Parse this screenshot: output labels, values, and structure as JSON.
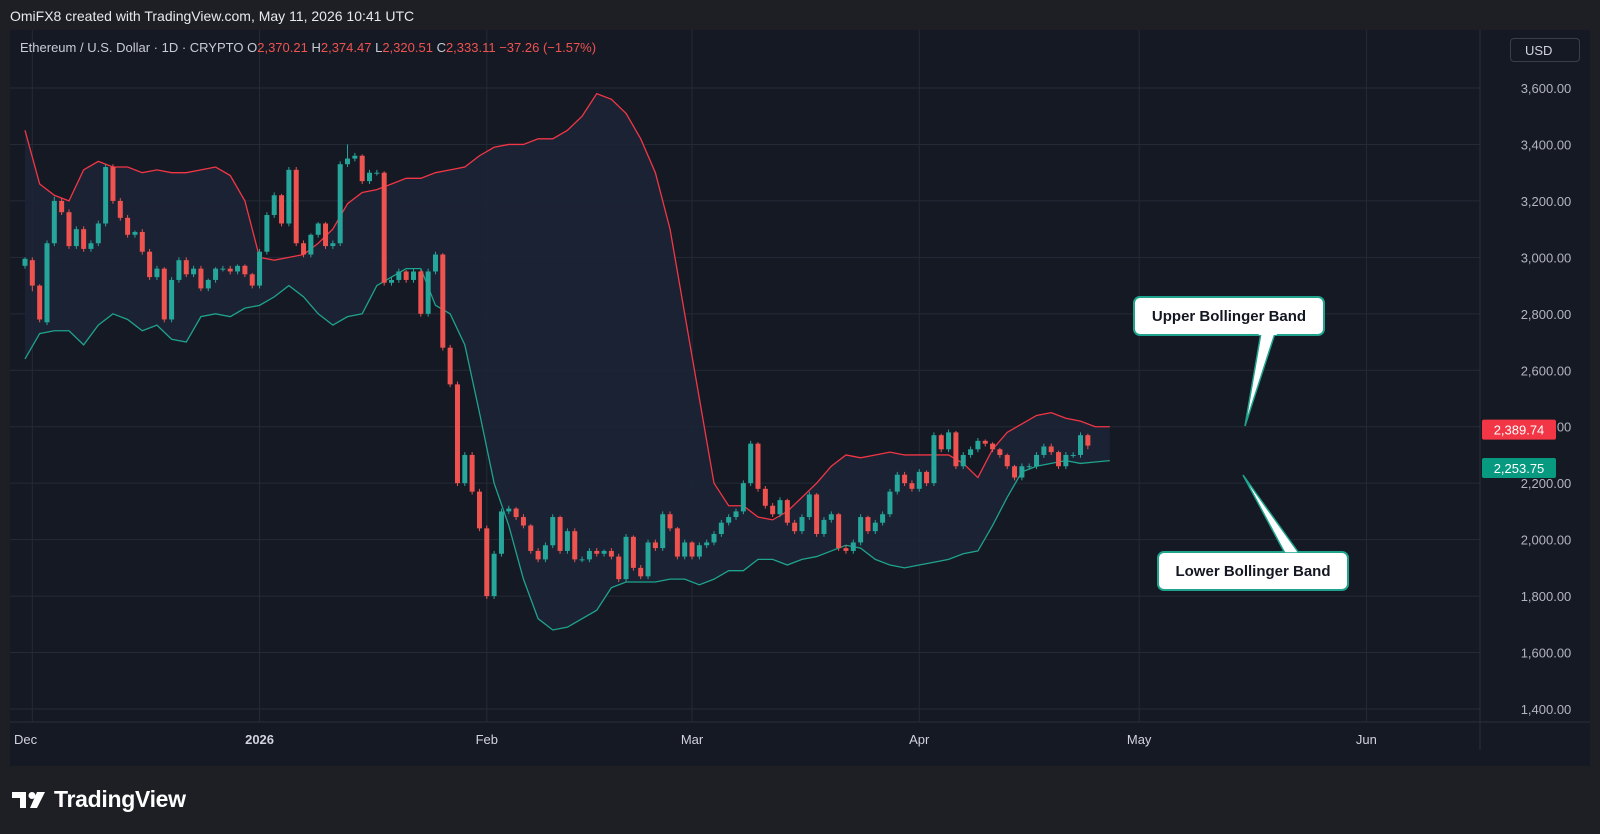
{
  "header": {
    "credit": "OmiFX8 created with TradingView.com, May 11, 2026 10:41 UTC"
  },
  "legend": {
    "symbol": "Ethereum / U.S. Dollar · 1D · CRYPTO",
    "open_label": "O",
    "open": "2,370.21",
    "high_label": "H",
    "high": "2,374.47",
    "low_label": "L",
    "low": "2,320.51",
    "close_label": "C",
    "close": "2,333.11",
    "change": "−37.26 (−1.57%)"
  },
  "currency": "USD",
  "brand": "TradingView",
  "colors": {
    "up": "#26a69a",
    "down": "#ef5350",
    "upper_band": "#f23645",
    "lower_band": "#1fa38c",
    "band_fill": "#1b2436",
    "background": "#151924"
  },
  "chart_data": {
    "type": "candlestick",
    "title": "Ethereum / U.S. Dollar · 1D · CRYPTO",
    "x_ticks": [
      "Dec",
      "2026",
      "Feb",
      "Mar",
      "Apr",
      "May",
      "Jun"
    ],
    "x_tick_dates": [
      "2025-12-01",
      "2026-01-01",
      "2026-02-01",
      "2026-03-01",
      "2026-04-01",
      "2026-05-01",
      "2026-06-01"
    ],
    "y_ticks": [
      1400,
      1600,
      1800,
      2000,
      2200,
      2400,
      2600,
      2800,
      3000,
      3200,
      3400,
      3600
    ],
    "y_tick_labels": [
      "1,400.00",
      "1,600.00",
      "1,800.00",
      "2,000.00",
      "2,200.00",
      "2,400.00",
      "2,600.00",
      "2,800.00",
      "3,000.00",
      "3,200.00",
      "3,400.00",
      "3,600.00"
    ],
    "ylim": [
      1360,
      3700
    ],
    "grid": true,
    "price_labels": [
      {
        "value": 2389.74,
        "label": "2,389.74",
        "color": "#f23645"
      },
      {
        "value": 2253.75,
        "label": "2,253.75",
        "color": "#089981"
      }
    ],
    "candles": {
      "start_date": "2025-11-30",
      "close": [
        2995,
        2900,
        2780,
        3050,
        3200,
        3160,
        3040,
        3100,
        3030,
        3050,
        3120,
        3320,
        3200,
        3140,
        3080,
        3090,
        3020,
        2930,
        2960,
        2780,
        2920,
        2990,
        2940,
        2960,
        2890,
        2920,
        2960,
        2960,
        2950,
        2970,
        2940,
        2900,
        3020,
        3150,
        3220,
        3120,
        3310,
        3050,
        3010,
        3080,
        3120,
        3040,
        3050,
        3330,
        3350,
        3360,
        3270,
        3300,
        3300,
        2910,
        2920,
        2950,
        2920,
        2950,
        2800,
        2950,
        3010,
        2680,
        2550,
        2200,
        2300,
        2170,
        2040,
        1800,
        1950,
        2100,
        2110,
        2080,
        2050,
        1960,
        1930,
        1980,
        2080,
        1960,
        2030,
        1930,
        1930,
        1960,
        1950,
        1960,
        1940,
        1860,
        2010,
        1900,
        1870,
        1990,
        1970,
        2090,
        2040,
        1940,
        1990,
        1940,
        1980,
        1990,
        2020,
        2060,
        2080,
        2100,
        2200,
        2340,
        2180,
        2120,
        2090,
        2140,
        2060,
        2030,
        2080,
        2160,
        2020,
        2070,
        2090,
        1970,
        1960,
        1990,
        2080,
        2030,
        2060,
        2090,
        2170,
        2230,
        2200,
        2180,
        2240,
        2200,
        2370,
        2320,
        2380,
        2260,
        2300,
        2320,
        2350,
        2340,
        2320,
        2300,
        2260,
        2220,
        2260,
        2260,
        2300,
        2330,
        2310,
        2260,
        2300,
        2300,
        2370,
        2333
      ],
      "open": [
        2970,
        2990,
        2900,
        2770,
        3050,
        3200,
        3160,
        3040,
        3100,
        3030,
        3050,
        3120,
        3320,
        3200,
        3140,
        3080,
        3090,
        3020,
        2930,
        2960,
        2780,
        2920,
        2990,
        2940,
        2960,
        2890,
        2920,
        2960,
        2960,
        2950,
        2970,
        2940,
        2900,
        3020,
        3150,
        3220,
        3120,
        3310,
        3050,
        3010,
        3080,
        3120,
        3040,
        3050,
        3330,
        3350,
        3360,
        3270,
        3300,
        3300,
        2910,
        2920,
        2950,
        2920,
        2950,
        2800,
        2950,
        3010,
        2680,
        2550,
        2200,
        2300,
        2170,
        2040,
        1800,
        1950,
        2100,
        2110,
        2080,
        2050,
        1960,
        1930,
        1980,
        2080,
        1960,
        2030,
        1930,
        1930,
        1960,
        1950,
        1960,
        1940,
        1860,
        2010,
        1900,
        1870,
        1990,
        1970,
        2090,
        2040,
        1940,
        1990,
        1940,
        1980,
        1990,
        2020,
        2060,
        2080,
        2100,
        2200,
        2340,
        2180,
        2120,
        2090,
        2140,
        2060,
        2030,
        2080,
        2160,
        2020,
        2070,
        2090,
        1970,
        1960,
        1990,
        2080,
        2030,
        2060,
        2090,
        2170,
        2230,
        2200,
        2180,
        2240,
        2200,
        2370,
        2320,
        2380,
        2260,
        2300,
        2320,
        2350,
        2340,
        2320,
        2300,
        2260,
        2220,
        2260,
        2260,
        2300,
        2330,
        2310,
        2260,
        2300,
        2300,
        2370
      ],
      "high": [
        3000,
        3000,
        2905,
        3060,
        3215,
        3210,
        3170,
        3110,
        3110,
        3060,
        3130,
        3330,
        3330,
        3210,
        3150,
        3095,
        3100,
        3030,
        2970,
        2965,
        2930,
        3000,
        3000,
        2970,
        2970,
        2925,
        2965,
        2970,
        2970,
        2975,
        2975,
        2945,
        3030,
        3160,
        3230,
        3225,
        3320,
        3320,
        3060,
        3085,
        3125,
        3125,
        3060,
        3340,
        3400,
        3370,
        3365,
        3310,
        3310,
        3305,
        2930,
        2960,
        2955,
        2960,
        2955,
        2960,
        3020,
        3015,
        2690,
        2560,
        2310,
        2310,
        2180,
        2050,
        1960,
        2110,
        2120,
        2115,
        2090,
        2055,
        1970,
        1990,
        2090,
        2085,
        2040,
        2040,
        1940,
        1970,
        1970,
        1965,
        1970,
        1950,
        2020,
        2015,
        1910,
        2000,
        2000,
        2100,
        2100,
        2045,
        2000,
        1995,
        1990,
        2000,
        2030,
        2070,
        2090,
        2110,
        2210,
        2350,
        2345,
        2190,
        2130,
        2150,
        2145,
        2070,
        2090,
        2170,
        2165,
        2080,
        2100,
        2095,
        1980,
        2000,
        2090,
        2085,
        2070,
        2100,
        2180,
        2240,
        2240,
        2210,
        2250,
        2245,
        2380,
        2375,
        2390,
        2385,
        2310,
        2330,
        2360,
        2355,
        2345,
        2325,
        2305,
        2265,
        2270,
        2270,
        2310,
        2340,
        2340,
        2315,
        2310,
        2310,
        2380,
        2375
      ],
      "low": [
        2960,
        2880,
        2770,
        2760,
        3040,
        3150,
        3030,
        3030,
        3020,
        3020,
        3040,
        3110,
        3190,
        3130,
        3070,
        3070,
        3010,
        2920,
        2920,
        2770,
        2770,
        2910,
        2930,
        2930,
        2880,
        2880,
        2910,
        2950,
        2940,
        2940,
        2930,
        2890,
        2890,
        3010,
        3140,
        3110,
        3110,
        3040,
        3000,
        3000,
        3070,
        3030,
        3030,
        3040,
        3320,
        3340,
        3260,
        3260,
        3290,
        2900,
        2900,
        2910,
        2910,
        2910,
        2790,
        2790,
        2940,
        2670,
        2540,
        2190,
        2190,
        2160,
        2030,
        1790,
        1790,
        1940,
        2090,
        2070,
        2040,
        1950,
        1920,
        1920,
        1970,
        1950,
        1950,
        1920,
        1920,
        1920,
        1940,
        1940,
        1930,
        1850,
        1850,
        1890,
        1860,
        1860,
        1960,
        1960,
        2030,
        1930,
        1930,
        1930,
        1930,
        1970,
        1980,
        2010,
        2050,
        2070,
        2090,
        2190,
        2170,
        2110,
        2080,
        2080,
        2050,
        2020,
        2020,
        2070,
        2010,
        2010,
        2060,
        1960,
        1950,
        1950,
        1980,
        2020,
        2020,
        2050,
        2080,
        2160,
        2190,
        2170,
        2170,
        2190,
        2190,
        2310,
        2310,
        2250,
        2250,
        2290,
        2310,
        2330,
        2310,
        2290,
        2250,
        2210,
        2210,
        2250,
        2250,
        2290,
        2300,
        2250,
        2250,
        2290,
        2290,
        2320
      ]
    },
    "bands": {
      "upper": [
        3450,
        3260,
        3220,
        3200,
        3310,
        3340,
        3320,
        3320,
        3300,
        3310,
        3300,
        3300,
        3310,
        3320,
        3290,
        3200,
        3000,
        2990,
        3000,
        3010,
        3050,
        3100,
        3190,
        3230,
        3240,
        3260,
        3280,
        3280,
        3300,
        3310,
        3320,
        3360,
        3390,
        3400,
        3400,
        3420,
        3420,
        3450,
        3500,
        3580,
        3560,
        3510,
        3420,
        3300,
        3100,
        2800,
        2500,
        2200,
        2120,
        2120,
        2080,
        2070,
        2100,
        2150,
        2200,
        2260,
        2300,
        2290,
        2300,
        2310,
        2300,
        2300,
        2300,
        2300,
        2270,
        2220,
        2320,
        2380,
        2410,
        2440,
        2450,
        2430,
        2420,
        2400,
        2400
      ],
      "lower": [
        2640,
        2730,
        2740,
        2740,
        2690,
        2760,
        2800,
        2780,
        2740,
        2760,
        2710,
        2700,
        2790,
        2800,
        2790,
        2820,
        2830,
        2860,
        2900,
        2860,
        2800,
        2760,
        2790,
        2800,
        2900,
        2930,
        2960,
        2960,
        2830,
        2800,
        2690,
        2450,
        2200,
        2050,
        1860,
        1720,
        1680,
        1690,
        1720,
        1750,
        1830,
        1850,
        1850,
        1850,
        1860,
        1860,
        1840,
        1860,
        1890,
        1890,
        1930,
        1930,
        1910,
        1930,
        1940,
        1960,
        1980,
        1970,
        1930,
        1910,
        1900,
        1910,
        1920,
        1930,
        1950,
        1960,
        2050,
        2150,
        2240,
        2260,
        2270,
        2280,
        2270,
        2275,
        2280
      ]
    }
  },
  "annotations": {
    "upper": "Upper Bollinger Band",
    "lower": "Lower Bollinger Band"
  }
}
